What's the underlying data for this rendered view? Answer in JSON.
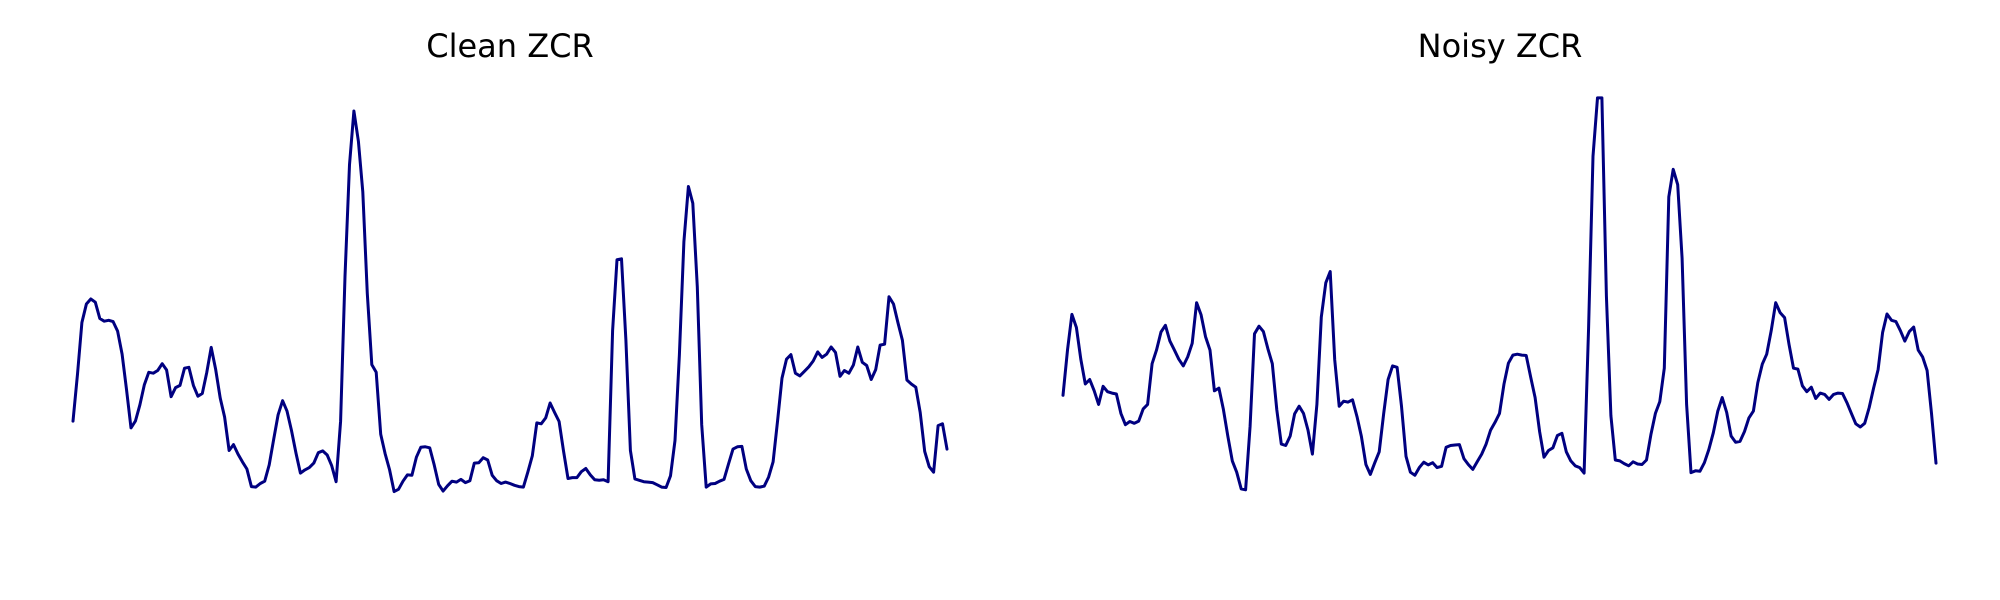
{
  "chart_data": [
    {
      "type": "line",
      "title": "Clean ZCR",
      "xlabel": "",
      "ylabel": "",
      "axes_visible": false,
      "grid": false,
      "line_color": "#000080",
      "series": [
        {
          "values": [
            0.283,
            0.387,
            0.501,
            0.542,
            0.553,
            0.546,
            0.51,
            0.504,
            0.506,
            0.503,
            0.482,
            0.431,
            0.353,
            0.268,
            0.283,
            0.319,
            0.363,
            0.391,
            0.389,
            0.395,
            0.41,
            0.396,
            0.337,
            0.357,
            0.362,
            0.4,
            0.402,
            0.362,
            0.338,
            0.344,
            0.391,
            0.446,
            0.397,
            0.334,
            0.292,
            0.218,
            0.231,
            0.21,
            0.193,
            0.177,
            0.138,
            0.137,
            0.145,
            0.15,
            0.186,
            0.243,
            0.297,
            0.328,
            0.305,
            0.262,
            0.212,
            0.168,
            0.175,
            0.18,
            0.19,
            0.213,
            0.217,
            0.208,
            0.185,
            0.149,
            0.283,
            0.603,
            0.85,
            0.969,
            0.902,
            0.79,
            0.565,
            0.408,
            0.391,
            0.254,
            0.211,
            0.175,
            0.127,
            0.132,
            0.15,
            0.164,
            0.163,
            0.203,
            0.225,
            0.226,
            0.224,
            0.186,
            0.143,
            0.128,
            0.14,
            0.15,
            0.148,
            0.154,
            0.147,
            0.151,
            0.19,
            0.191,
            0.202,
            0.197,
            0.163,
            0.151,
            0.145,
            0.148,
            0.145,
            0.141,
            0.138,
            0.137,
            0.17,
            0.206,
            0.279,
            0.277,
            0.29,
            0.323,
            0.302,
            0.282,
            0.217,
            0.156,
            0.158,
            0.158,
            0.171,
            0.178,
            0.164,
            0.153,
            0.152,
            0.153,
            0.149,
            0.483,
            0.64,
            0.642,
            0.462,
            0.218,
            0.155,
            0.152,
            0.149,
            0.148,
            0.147,
            0.142,
            0.137,
            0.136,
            0.162,
            0.24,
            0.43,
            0.68,
            0.802,
            0.765,
            0.58,
            0.275,
            0.137,
            0.144,
            0.145,
            0.15,
            0.154,
            0.188,
            0.221,
            0.226,
            0.227,
            0.177,
            0.151,
            0.138,
            0.137,
            0.139,
            0.159,
            0.193,
            0.284,
            0.378,
            0.42,
            0.43,
            0.389,
            0.383,
            0.393,
            0.403,
            0.416,
            0.436,
            0.424,
            0.431,
            0.447,
            0.435,
            0.382,
            0.395,
            0.389,
            0.407,
            0.447,
            0.413,
            0.406,
            0.375,
            0.397,
            0.451,
            0.453,
            0.558,
            0.542,
            0.501,
            0.462,
            0.374,
            0.365,
            0.358,
            0.302,
            0.216,
            0.182,
            0.17,
            0.273,
            0.277,
            0.221
          ]
        }
      ]
    },
    {
      "type": "line",
      "title": "Noisy ZCR",
      "xlabel": "",
      "ylabel": "",
      "axes_visible": false,
      "grid": false,
      "line_color": "#000080",
      "series": [
        {
          "values": [
            0.34,
            0.44,
            0.519,
            0.49,
            0.42,
            0.365,
            0.375,
            0.35,
            0.32,
            0.36,
            0.348,
            0.345,
            0.343,
            0.3,
            0.275,
            0.282,
            0.278,
            0.283,
            0.31,
            0.32,
            0.41,
            0.44,
            0.48,
            0.495,
            0.46,
            0.44,
            0.42,
            0.405,
            0.425,
            0.455,
            0.545,
            0.518,
            0.47,
            0.44,
            0.35,
            0.356,
            0.31,
            0.25,
            0.195,
            0.17,
            0.133,
            0.131,
            0.272,
            0.476,
            0.493,
            0.481,
            0.443,
            0.41,
            0.308,
            0.232,
            0.229,
            0.25,
            0.299,
            0.316,
            0.3,
            0.263,
            0.21,
            0.32,
            0.513,
            0.589,
            0.614,
            0.419,
            0.316,
            0.327,
            0.325,
            0.33,
            0.293,
            0.249,
            0.187,
            0.165,
            0.191,
            0.215,
            0.3,
            0.375,
            0.405,
            0.402,
            0.316,
            0.205,
            0.17,
            0.163,
            0.18,
            0.192,
            0.186,
            0.191,
            0.18,
            0.183,
            0.225,
            0.229,
            0.23,
            0.231,
            0.2,
            0.187,
            0.176,
            0.193,
            0.21,
            0.232,
            0.263,
            0.28,
            0.3,
            0.365,
            0.411,
            0.429,
            0.431,
            0.429,
            0.428,
            0.38,
            0.335,
            0.26,
            0.203,
            0.218,
            0.224,
            0.251,
            0.256,
            0.215,
            0.195,
            0.184,
            0.18,
            0.168,
            0.49,
            0.869,
            0.998,
            0.998,
            0.56,
            0.295,
            0.197,
            0.195,
            0.189,
            0.184,
            0.193,
            0.188,
            0.187,
            0.197,
            0.253,
            0.3,
            0.326,
            0.4,
            0.779,
            0.84,
            0.806,
            0.643,
            0.32,
            0.169,
            0.173,
            0.172,
            0.191,
            0.22,
            0.257,
            0.305,
            0.335,
            0.302,
            0.25,
            0.236,
            0.238,
            0.26,
            0.29,
            0.305,
            0.368,
            0.409,
            0.431,
            0.483,
            0.545,
            0.523,
            0.512,
            0.453,
            0.4,
            0.398,
            0.361,
            0.348,
            0.358,
            0.333,
            0.345,
            0.342,
            0.331,
            0.342,
            0.345,
            0.344,
            0.324,
            0.3,
            0.277,
            0.27,
            0.278,
            0.313,
            0.356,
            0.397,
            0.479,
            0.52,
            0.506,
            0.503,
            0.483,
            0.46,
            0.481,
            0.491,
            0.44,
            0.425,
            0.395,
            0.3,
            0.19
          ]
        }
      ]
    }
  ]
}
